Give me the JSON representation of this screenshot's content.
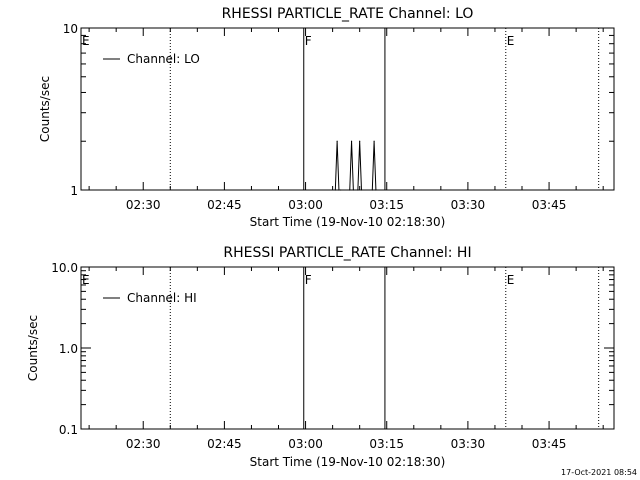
{
  "chart_data": [
    {
      "type": "line",
      "title": "RHESSI PARTICLE_RATE Channel: LO",
      "xlabel": "Start Time (19-Nov-10 02:18:30)",
      "ylabel": "Counts/sec",
      "yscale": "log",
      "xlim": [
        "02:18:30",
        "03:57:00"
      ],
      "ylim": [
        1,
        10
      ],
      "x_ticks": [
        "02:30",
        "02:45",
        "03:00",
        "03:15",
        "03:30",
        "03:45"
      ],
      "y_ticks": [
        "1",
        "10"
      ],
      "legend": {
        "placement": "top-left",
        "entries": [
          "Channel: LO"
        ]
      },
      "series": [
        {
          "name": "Channel: LO",
          "x": [
            "03:05:30",
            "03:05:50",
            "03:06:10",
            "03:06:30",
            "03:08:10",
            "03:08:30",
            "03:08:50",
            "03:09:40",
            "03:10:00",
            "03:10:20",
            "03:12:20",
            "03:12:40",
            "03:13:00"
          ],
          "y": [
            1,
            2,
            1,
            1,
            1,
            2,
            1,
            1,
            2,
            1,
            1,
            2,
            1
          ]
        }
      ],
      "markers": [
        {
          "time": "02:18:30",
          "style": "none",
          "label": "E"
        },
        {
          "time": "02:35:00",
          "style": "dotted",
          "label": ""
        },
        {
          "time": "02:59:40",
          "style": "solid",
          "label": "F"
        },
        {
          "time": "03:14:40",
          "style": "solid",
          "label": ""
        },
        {
          "time": "03:37:00",
          "style": "dotted",
          "label": "E"
        },
        {
          "time": "03:54:10",
          "style": "dotted",
          "label": ""
        }
      ]
    },
    {
      "type": "line",
      "title": "RHESSI PARTICLE_RATE Channel: HI",
      "xlabel": "Start Time (19-Nov-10 02:18:30)",
      "ylabel": "Counts/sec",
      "yscale": "log",
      "xlim": [
        "02:18:30",
        "03:57:00"
      ],
      "ylim": [
        0.1,
        10
      ],
      "x_ticks": [
        "02:30",
        "02:45",
        "03:00",
        "03:15",
        "03:30",
        "03:45"
      ],
      "y_ticks": [
        "0.1",
        "1.0",
        "10.0"
      ],
      "legend": {
        "placement": "top-left",
        "entries": [
          "Channel: HI"
        ]
      },
      "series": [
        {
          "name": "Channel: HI",
          "x": [],
          "y": []
        }
      ],
      "markers": [
        {
          "time": "02:18:30",
          "style": "none",
          "label": "E"
        },
        {
          "time": "02:35:00",
          "style": "dotted",
          "label": ""
        },
        {
          "time": "02:59:40",
          "style": "solid",
          "label": "F"
        },
        {
          "time": "03:14:40",
          "style": "solid",
          "label": ""
        },
        {
          "time": "03:37:00",
          "style": "dotted",
          "label": "E"
        },
        {
          "time": "03:54:10",
          "style": "dotted",
          "label": ""
        }
      ]
    }
  ],
  "footer": {
    "timestamp": "17-Oct-2021 08:54"
  }
}
